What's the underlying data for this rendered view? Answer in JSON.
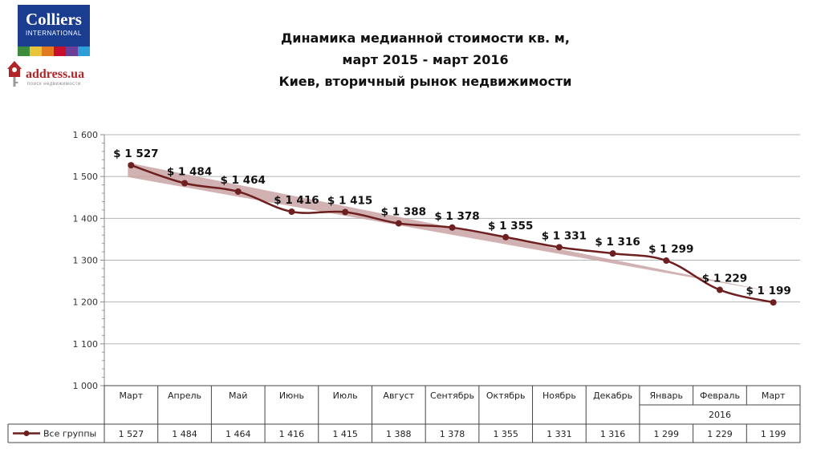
{
  "logos": {
    "colliers": {
      "name": "Colliers",
      "sub": "INTERNATIONAL"
    },
    "address": {
      "name": "address.ua",
      "sub": "поиск недвижимости"
    }
  },
  "colors": {
    "line": "#6e1f1f",
    "trend": "#c9a3a3",
    "grid": "#b5b5b5",
    "brand_blue": "#1a3d8f"
  },
  "chart_data": {
    "type": "line",
    "title_lines": [
      "Динамика медианной стоимости кв. м,",
      "март 2015 - март 2016",
      "Киев, вторичный рынок недвижимости"
    ],
    "categories": [
      "Март",
      "Апрель",
      "Май",
      "Июнь",
      "Июль",
      "Август",
      "Сентябрь",
      "Октябрь",
      "Ноябрь",
      "Декабрь",
      "Январь",
      "Февраль",
      "Март"
    ],
    "category_groups": [
      {
        "label": "2016",
        "from_index": 10,
        "to_index": 12
      }
    ],
    "series": [
      {
        "name": "Все группы",
        "values": [
          1527,
          1484,
          1464,
          1416,
          1415,
          1388,
          1378,
          1355,
          1331,
          1316,
          1299,
          1229,
          1199
        ],
        "value_labels": [
          "$ 1 527",
          "$ 1 484",
          "$ 1 464",
          "$ 1 416",
          "$ 1 415",
          "$ 1 388",
          "$ 1 378",
          "$ 1 355",
          "$ 1 331",
          "$ 1 316",
          "$ 1 299",
          "$ 1 229",
          "$ 1 199"
        ],
        "table_labels": [
          "1 527",
          "1 484",
          "1 464",
          "1 416",
          "1 415",
          "1 388",
          "1 378",
          "1 355",
          "1 331",
          "1 316",
          "1 299",
          "1 229",
          "1 199"
        ]
      }
    ],
    "ylim": [
      1000,
      1600
    ],
    "yticks": [
      1000,
      1100,
      1200,
      1300,
      1400,
      1500,
      1600
    ],
    "ytick_labels": [
      "1 000",
      "1 100",
      "1 200",
      "1 300",
      "1 400",
      "1 500",
      "1 600"
    ],
    "trendline": true,
    "grid": "horizontal",
    "data_table": true
  }
}
